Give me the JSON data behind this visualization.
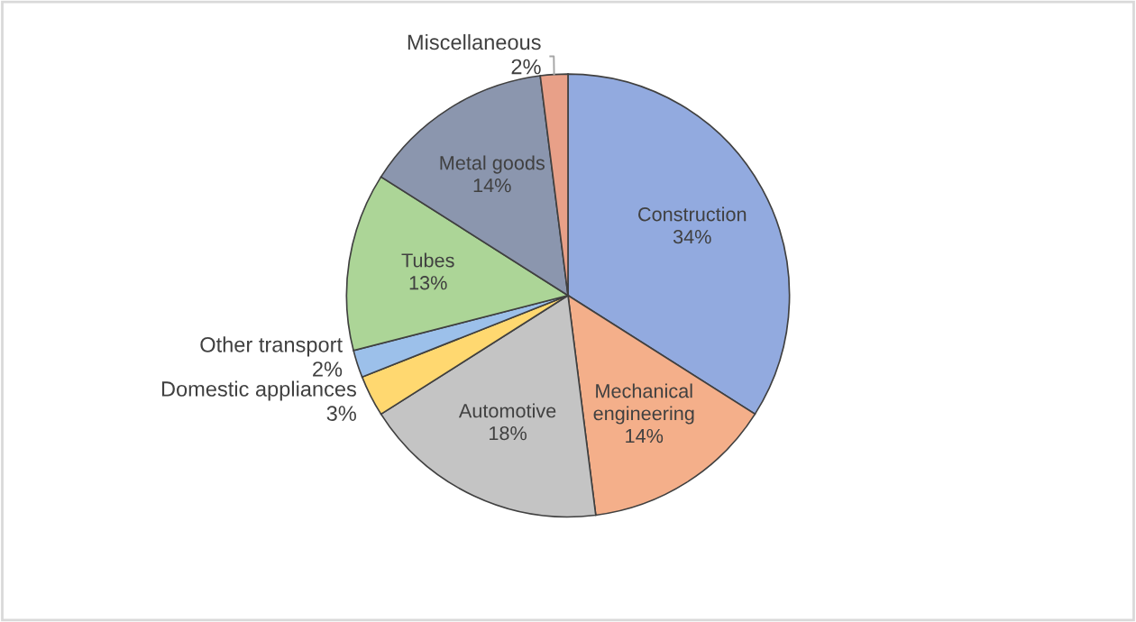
{
  "chart_data": {
    "type": "pie",
    "categories": [
      "Construction",
      "Mechanical engineering",
      "Automotive",
      "Domestic appliances",
      "Other transport",
      "Tubes",
      "Metal goods",
      "Miscellaneous"
    ],
    "values": [
      34,
      14,
      18,
      3,
      2,
      13,
      14,
      2
    ],
    "colors": [
      "#92aadf",
      "#f4af8a",
      "#c4c4c4",
      "#ffd870",
      "#9cc0ea",
      "#acd597",
      "#8b96ae",
      "#e8a088"
    ],
    "value_labels": [
      "34%",
      "14%",
      "18%",
      "3%",
      "2%",
      "13%",
      "14%",
      "2%"
    ],
    "legend": false
  }
}
